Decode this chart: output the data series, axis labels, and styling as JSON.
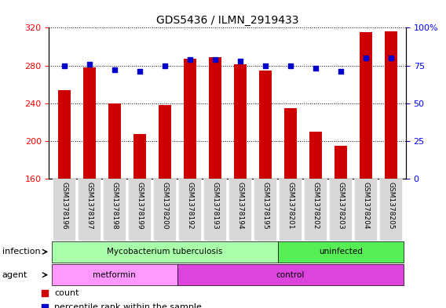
{
  "title": "GDS5436 / ILMN_2919433",
  "samples": [
    "GSM1378196",
    "GSM1378197",
    "GSM1378198",
    "GSM1378199",
    "GSM1378200",
    "GSM1378192",
    "GSM1378193",
    "GSM1378194",
    "GSM1378195",
    "GSM1378201",
    "GSM1378202",
    "GSM1378203",
    "GSM1378204",
    "GSM1378205"
  ],
  "counts": [
    254,
    278,
    240,
    207,
    238,
    287,
    289,
    281,
    275,
    235,
    210,
    195,
    315,
    316
  ],
  "percentiles": [
    75,
    76,
    72,
    71,
    75,
    79,
    79,
    78,
    75,
    75,
    73,
    71,
    80,
    80
  ],
  "ylim_left": [
    160,
    320
  ],
  "ylim_right": [
    0,
    100
  ],
  "yticks_left": [
    160,
    200,
    240,
    280,
    320
  ],
  "yticks_right": [
    0,
    25,
    50,
    75,
    100
  ],
  "bar_color": "#cc0000",
  "dot_color": "#0000cc",
  "infection_groups": [
    {
      "label": "Mycobacterium tuberculosis",
      "start": 0,
      "end": 9,
      "color": "#aaffaa"
    },
    {
      "label": "uninfected",
      "start": 9,
      "end": 14,
      "color": "#55ee55"
    }
  ],
  "agent_groups": [
    {
      "label": "metformin",
      "start": 0,
      "end": 5,
      "color": "#ff99ff"
    },
    {
      "label": "control",
      "start": 5,
      "end": 14,
      "color": "#dd44dd"
    }
  ],
  "infection_label": "infection",
  "agent_label": "agent",
  "legend_count": "count",
  "legend_percentile": "percentile rank within the sample"
}
